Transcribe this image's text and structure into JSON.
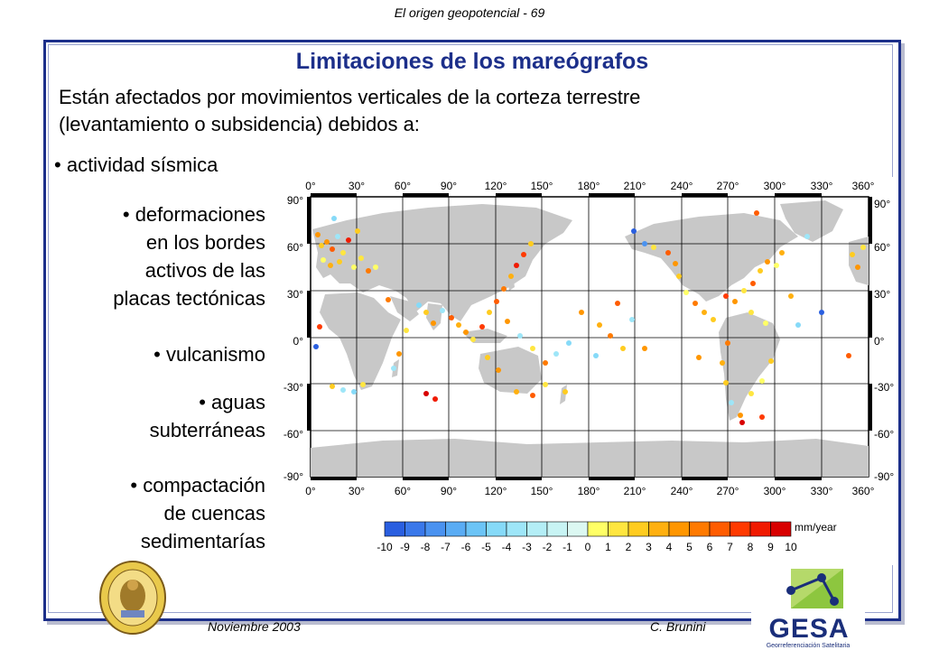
{
  "header": {
    "title": "El origen geopotencial - 69"
  },
  "slide": {
    "title": "Limitaciones de los mareógrafos",
    "intro_line1": "Están afectados por movimientos verticales de la corteza terrestre",
    "intro_line2": "(levantamiento o subsidencia) debidos a:",
    "bullets": {
      "b1": "actividad sísmica",
      "b2_l1": "deformaciones",
      "b2_l2": "en los bordes",
      "b2_l3": "activos de las",
      "b2_l4": "placas tectónicas",
      "b3": "vulcanismo",
      "b4_l1": "aguas",
      "b4_l2": "subterráneas",
      "b5_l1": "compactación",
      "b5_l2": "de cuencas",
      "b5_l3": "sedimentarías"
    }
  },
  "map": {
    "lon_labels": [
      "0°",
      "30°",
      "60°",
      "90°",
      "120°",
      "150°",
      "180°",
      "210°",
      "240°",
      "270°",
      "300°",
      "330°",
      "360°"
    ],
    "lat_labels": [
      "90°",
      "60°",
      "30°",
      "0°",
      "-30°",
      "-60°",
      "-90°"
    ],
    "legend": {
      "unit": "mm/year",
      "ticks": [
        "-10",
        "-9",
        "-8",
        "-7",
        "-6",
        "-5",
        "-4",
        "-3",
        "-2",
        "-1",
        "0",
        "1",
        "2",
        "3",
        "4",
        "5",
        "6",
        "7",
        "8",
        "9",
        "10"
      ],
      "colors": [
        "#2a5fe0",
        "#3a78ea",
        "#4a92f0",
        "#5aacf4",
        "#6cc4f6",
        "#86daf8",
        "#9ee6f8",
        "#b4eef6",
        "#c8f4f4",
        "#dcf8f2",
        "#ffff66",
        "#ffe640",
        "#ffcc20",
        "#ffb010",
        "#ff9600",
        "#ff7a00",
        "#ff5c00",
        "#ff3a00",
        "#f01a00",
        "#d80000"
      ]
    }
  },
  "footer": {
    "date": "Noviembre 2003",
    "author": "C. Brunini"
  },
  "logo": {
    "name": "GESA",
    "subtitle": "Georreferenciación Satelitaria"
  }
}
